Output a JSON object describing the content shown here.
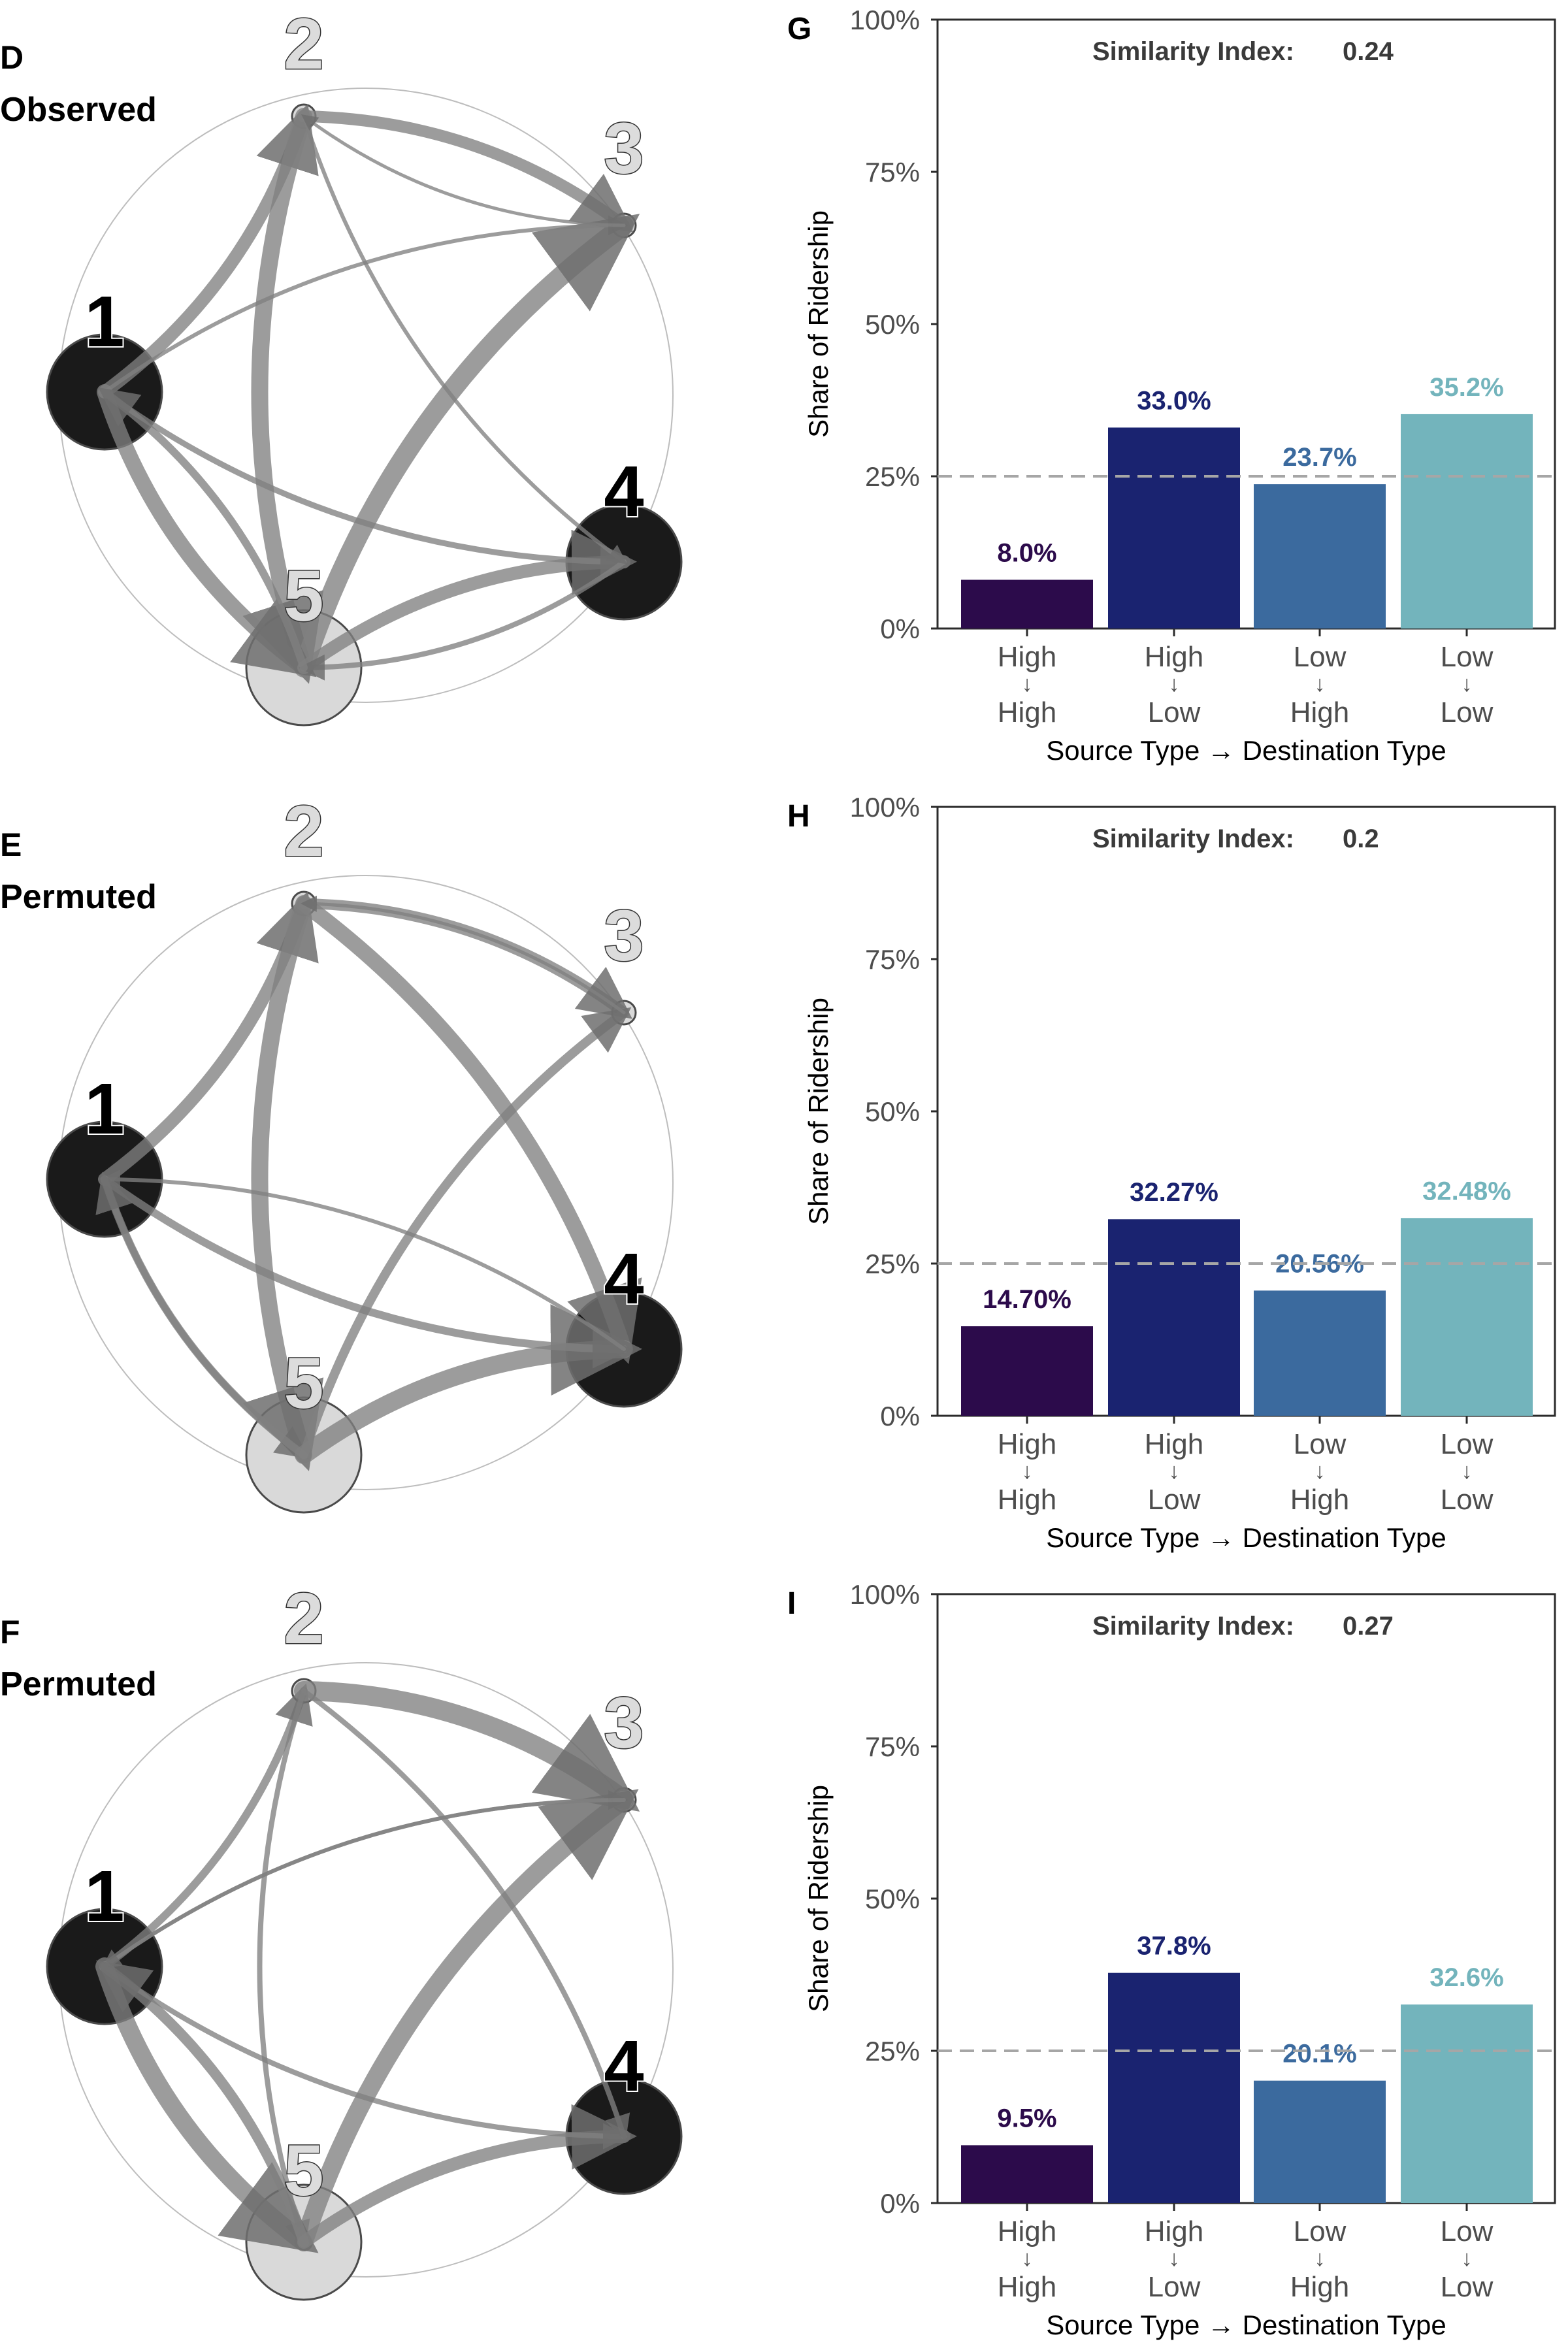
{
  "rows": [
    {
      "network_panel": {
        "letter": "D",
        "title": "Observed"
      },
      "bar_panel": {
        "letter": "G",
        "similarity_label": "Similarity Index:",
        "similarity_value": "0.24"
      }
    },
    {
      "network_panel": {
        "letter": "E",
        "title": "Permuted"
      },
      "bar_panel": {
        "letter": "H",
        "similarity_label": "Similarity Index:",
        "similarity_value": "0.2"
      }
    },
    {
      "network_panel": {
        "letter": "F",
        "title": "Permuted"
      },
      "bar_panel": {
        "letter": "I",
        "similarity_label": "Similarity Index:",
        "similarity_value": "0.27"
      }
    }
  ],
  "network_nodes": [
    {
      "id": "1",
      "shade": "dark"
    },
    {
      "id": "2",
      "shade": "light"
    },
    {
      "id": "3",
      "shade": "light"
    },
    {
      "id": "4",
      "shade": "dark"
    },
    {
      "id": "5",
      "shade": "light"
    }
  ],
  "colors": {
    "high_high": "#2c0b4b",
    "high_low": "#1a2370",
    "low_high": "#3b6a9e",
    "low_low": "#73b4bc",
    "dark_node": "#1a1a1a",
    "light_node": "#d9d9d9",
    "edge": "#808080",
    "reference_line": "#a6a6a6"
  },
  "chart_data": [
    {
      "type": "bar",
      "categories": [
        "High ↓ High",
        "High ↓ Low",
        "Low ↓ High",
        "Low ↓ Low"
      ],
      "category_lines": [
        [
          "High",
          "↓",
          "High"
        ],
        [
          "High",
          "↓",
          "Low"
        ],
        [
          "Low",
          "↓",
          "High"
        ],
        [
          "Low",
          "↓",
          "Low"
        ]
      ],
      "values": [
        8.0,
        33.0,
        23.7,
        35.2
      ],
      "value_labels": [
        "8.0%",
        "33.0%",
        "23.7%",
        "35.2%"
      ],
      "xlabel": "Source Type → Destination Type",
      "ylabel": "Share of Ridership",
      "ylim": [
        0,
        100
      ],
      "yticks": [
        0,
        25,
        50,
        75,
        100
      ],
      "ytick_labels": [
        "0%",
        "25%",
        "50%",
        "75%",
        "100%"
      ],
      "reference_line": 25,
      "grid": false
    },
    {
      "type": "bar",
      "categories": [
        "High ↓ High",
        "High ↓ Low",
        "Low ↓ High",
        "Low ↓ Low"
      ],
      "category_lines": [
        [
          "High",
          "↓",
          "High"
        ],
        [
          "High",
          "↓",
          "Low"
        ],
        [
          "Low",
          "↓",
          "High"
        ],
        [
          "Low",
          "↓",
          "Low"
        ]
      ],
      "values": [
        14.7,
        32.27,
        20.56,
        32.48
      ],
      "value_labels": [
        "14.70%",
        "32.27%",
        "20.56%",
        "32.48%"
      ],
      "xlabel": "Source Type → Destination Type",
      "ylabel": "Share of Ridership",
      "ylim": [
        0,
        100
      ],
      "yticks": [
        0,
        25,
        50,
        75,
        100
      ],
      "ytick_labels": [
        "0%",
        "25%",
        "50%",
        "75%",
        "100%"
      ],
      "reference_line": 25,
      "grid": false
    },
    {
      "type": "bar",
      "categories": [
        "High ↓ High",
        "High ↓ Low",
        "Low ↓ High",
        "Low ↓ Low"
      ],
      "category_lines": [
        [
          "High",
          "↓",
          "High"
        ],
        [
          "High",
          "↓",
          "Low"
        ],
        [
          "Low",
          "↓",
          "High"
        ],
        [
          "Low",
          "↓",
          "Low"
        ]
      ],
      "values": [
        9.5,
        37.8,
        20.1,
        32.6
      ],
      "value_labels": [
        "9.5%",
        "37.8%",
        "20.1%",
        "32.6%"
      ],
      "xlabel": "Source Type → Destination Type",
      "ylabel": "Share of Ridership",
      "ylim": [
        0,
        100
      ],
      "yticks": [
        0,
        25,
        50,
        75,
        100
      ],
      "ytick_labels": [
        "0%",
        "25%",
        "50%",
        "75%",
        "100%"
      ],
      "reference_line": 25,
      "grid": false
    }
  ]
}
